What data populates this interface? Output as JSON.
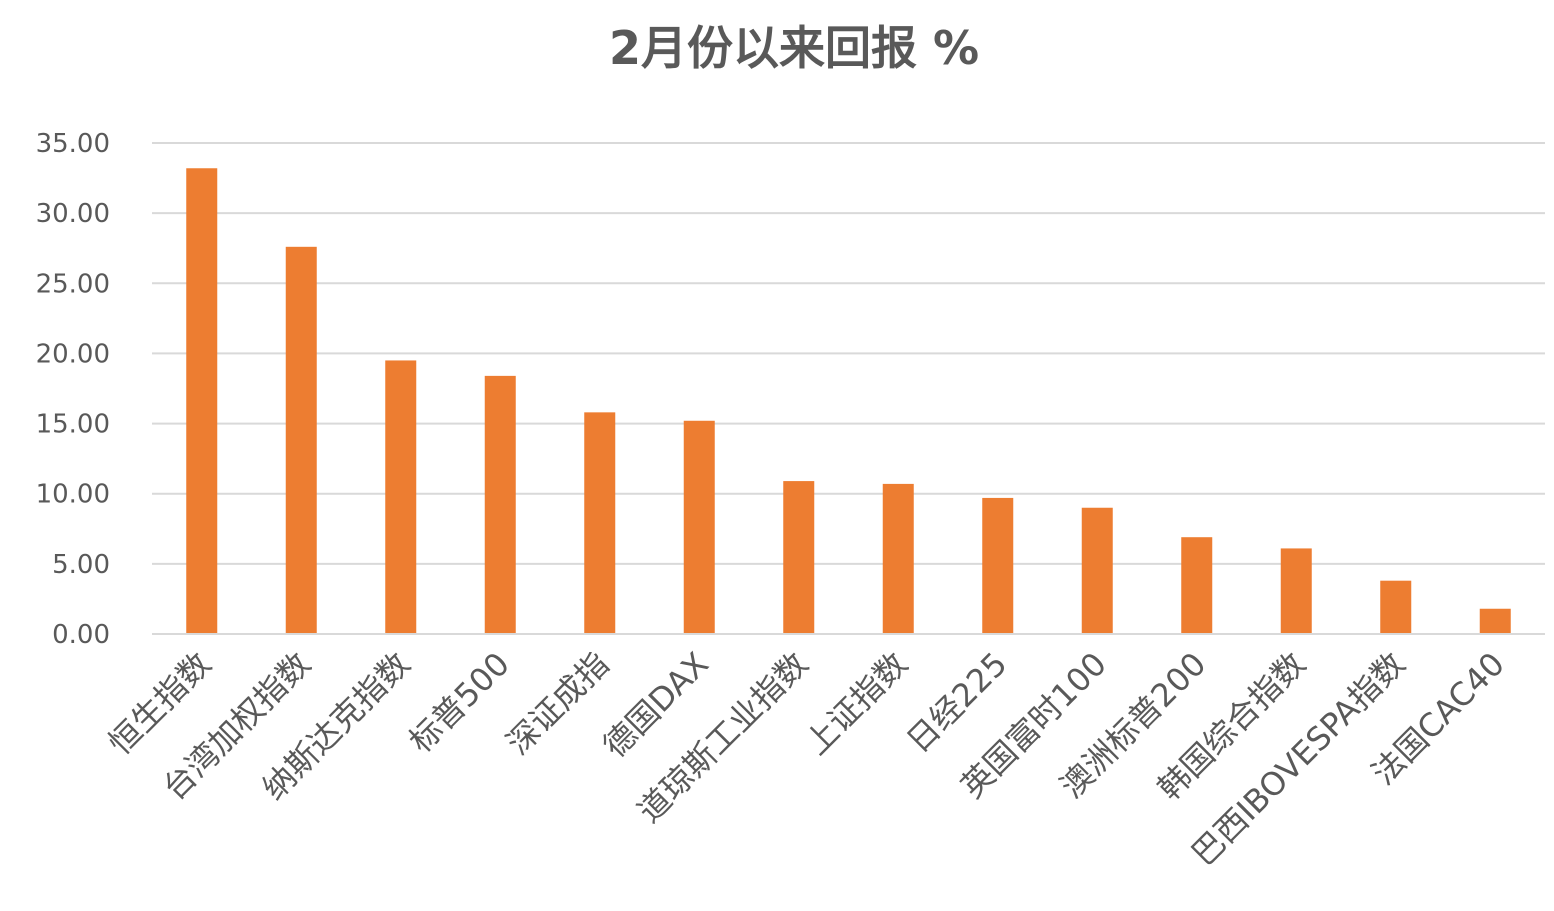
{
  "chart_data": {
    "type": "bar",
    "title": "2月份以来回报 %",
    "xlabel": "",
    "ylabel": "",
    "categories": [
      "恒生指数",
      "台湾加权指数",
      "纳斯达克指数",
      "标普500",
      "深证成指",
      "德国DAX",
      "道琼斯工业指数",
      "上证指数",
      "日经225",
      "英国富时100",
      "澳洲标普200",
      "韩国综合指数",
      "巴西IBOVESPA指数",
      "法国CAC40"
    ],
    "series": [
      {
        "values": [
          33.2,
          27.6,
          19.5,
          18.4,
          15.8,
          15.2,
          10.9,
          10.7,
          9.7,
          9.0,
          6.9,
          6.1,
          3.8,
          1.8
        ]
      }
    ],
    "ylim": [
      0,
      35
    ],
    "yticks": [
      "0.00",
      "5.00",
      "10.00",
      "15.00",
      "20.00",
      "25.00",
      "30.00",
      "35.00"
    ],
    "grid": true,
    "legend": "none",
    "bar_color": "#ed7d31"
  }
}
